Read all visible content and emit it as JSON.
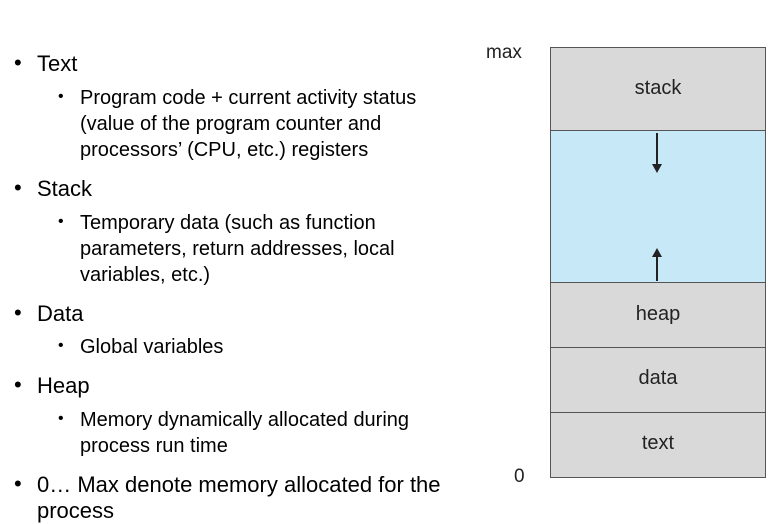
{
  "bullets": [
    {
      "label": "Text",
      "sub": [
        "Program code + current activity status",
        "(value of the program counter and",
        "processors’ (CPU, etc.) registers"
      ]
    },
    {
      "label": "Stack",
      "sub": [
        "Temporary data (such as function",
        "parameters, return addresses, local",
        "variables, etc.)"
      ]
    },
    {
      "label": "Data",
      "sub": [
        "Global variables"
      ]
    },
    {
      "label": "Heap",
      "sub": [
        "Memory dynamically allocated during",
        "process run time"
      ]
    },
    {
      "label_lines": [
        "0… Max denote memory allocated for the",
        "process"
      ]
    }
  ],
  "diagram": {
    "max_label": "max",
    "zero_label": "0",
    "segments": {
      "stack": "stack",
      "heap": "heap",
      "data": "data",
      "text": "text"
    },
    "colors": {
      "segment_fill": "#d9d9d9",
      "free_fill": "#c7e8f7",
      "border": "#555555"
    }
  }
}
